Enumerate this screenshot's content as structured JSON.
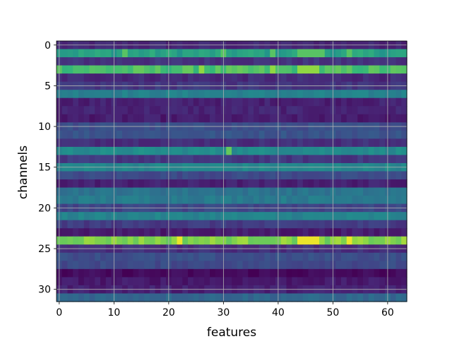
{
  "chart_data": {
    "type": "heatmap",
    "title": "",
    "xlabel": "features",
    "ylabel": "channels",
    "columns": 64,
    "rows": 32,
    "xlim": [
      -0.5,
      63.5
    ],
    "ylim": [
      31.5,
      -0.5
    ],
    "x_ticks": [
      0,
      10,
      20,
      30,
      40,
      50,
      60
    ],
    "y_ticks": [
      0,
      5,
      10,
      15,
      20,
      25,
      30
    ],
    "grid": true,
    "colormap": "viridis",
    "row_levels": [
      0.14,
      0.68,
      0.18,
      0.78,
      0.15,
      0.2,
      0.55,
      0.12,
      0.13,
      0.1,
      0.3,
      0.33,
      0.17,
      0.6,
      0.2,
      0.58,
      0.28,
      0.12,
      0.48,
      0.52,
      0.26,
      0.56,
      0.22,
      0.1,
      0.86,
      0.17,
      0.3,
      0.28,
      0.03,
      0.09,
      0.12,
      0.42
    ],
    "bright_spots": [
      {
        "channel": 1,
        "features": [
          12,
          30,
          39,
          44,
          45,
          46,
          47,
          48,
          53
        ],
        "value": 0.8
      },
      {
        "channel": 3,
        "features": [
          26,
          39,
          44,
          45,
          46,
          47
        ],
        "value": 0.88
      },
      {
        "channel": 13,
        "features": [
          31
        ],
        "value": 0.82
      },
      {
        "channel": 24,
        "features": [
          22,
          44,
          45,
          46,
          47,
          53
        ],
        "value": 0.98
      }
    ]
  }
}
